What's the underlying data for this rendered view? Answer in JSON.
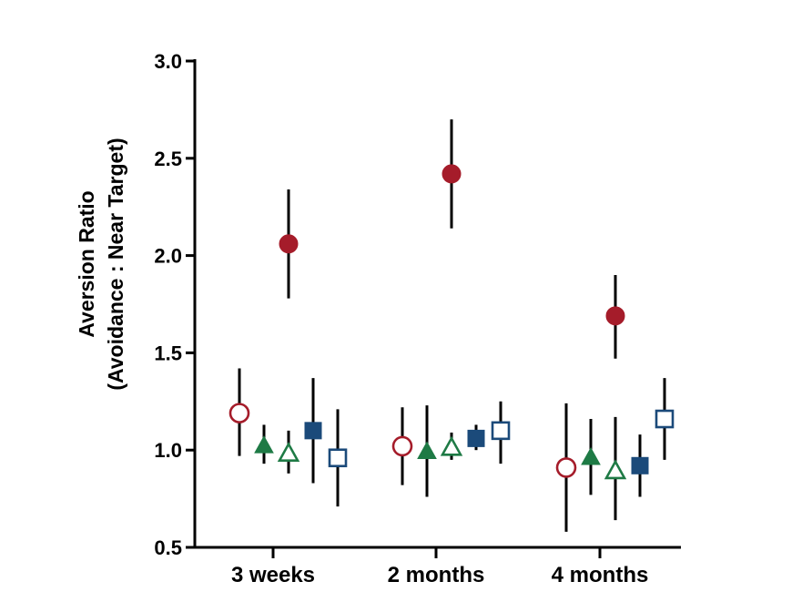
{
  "chart_data": {
    "type": "scatter",
    "title": "",
    "ylabel_line1": "Aversion Ratio",
    "ylabel_line2": "(Avoidance : Near Target)",
    "xlabel": "",
    "ylim": [
      0.5,
      3.0
    ],
    "y_ticks": [
      "0.5",
      "1.0",
      "1.5",
      "2.0",
      "2.5",
      "3.0"
    ],
    "y_tick_values": [
      0.5,
      1.0,
      1.5,
      2.0,
      2.5,
      3.0
    ],
    "categories": [
      "3 weeks",
      "2 months",
      "4 months"
    ],
    "grid": false,
    "legend": "none",
    "series": [
      {
        "marker": "circle",
        "filled": false,
        "color": "#a51c2a",
        "values": [
          1.19,
          1.02,
          0.91
        ],
        "err_low": [
          0.97,
          0.82,
          0.58
        ],
        "err_high": [
          1.42,
          1.22,
          1.24
        ]
      },
      {
        "marker": "circle",
        "filled": true,
        "color": "#a51c2a",
        "values": [
          2.06,
          2.42,
          1.69
        ],
        "err_low": [
          1.78,
          2.14,
          1.47
        ],
        "err_high": [
          2.34,
          2.7,
          1.9
        ]
      },
      {
        "marker": "triangle",
        "filled": true,
        "color": "#1e7a45",
        "values": [
          1.02,
          0.99,
          0.96
        ],
        "err_low": [
          0.93,
          0.76,
          0.77
        ],
        "err_high": [
          1.13,
          1.23,
          1.16
        ]
      },
      {
        "marker": "triangle",
        "filled": false,
        "color": "#1e7a45",
        "values": [
          0.98,
          1.01,
          0.89
        ],
        "err_low": [
          0.88,
          0.95,
          0.64
        ],
        "err_high": [
          1.1,
          1.09,
          1.17
        ]
      },
      {
        "marker": "square",
        "filled": true,
        "color": "#1b4a7a",
        "values": [
          1.1,
          1.06,
          0.92
        ],
        "err_low": [
          0.83,
          1.0,
          0.76
        ],
        "err_high": [
          1.37,
          1.13,
          1.08
        ]
      },
      {
        "marker": "square",
        "filled": false,
        "color": "#1b4a7a",
        "values": [
          0.96,
          1.1,
          1.16
        ],
        "err_low": [
          0.71,
          0.93,
          0.95
        ],
        "err_high": [
          1.21,
          1.25,
          1.37
        ]
      }
    ]
  }
}
